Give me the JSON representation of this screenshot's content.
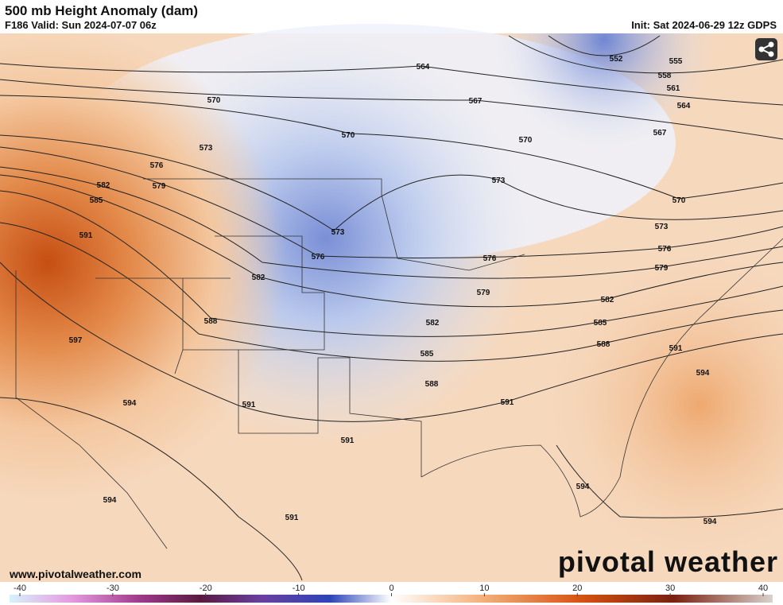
{
  "header": {
    "title": "500 mb Height Anomaly (dam)",
    "valid": "F186 Valid: Sun 2024-07-07 06z",
    "init": "Init: Sat 2024-06-29 12z GDPS"
  },
  "contour_labels": [
    552,
    555,
    558,
    561,
    564,
    564,
    567,
    567,
    570,
    570,
    570,
    570,
    573,
    573,
    573,
    573,
    576,
    576,
    576,
    576,
    579,
    579,
    579,
    582,
    582,
    582,
    582,
    585,
    585,
    585,
    588,
    588,
    588,
    591,
    591,
    591,
    591,
    591,
    591,
    594,
    594,
    594,
    594,
    594,
    597
  ],
  "colorbar": {
    "ticks": [
      -40,
      -30,
      -20,
      -10,
      0,
      10,
      20,
      30,
      40
    ]
  },
  "footer": {
    "website": "www.pivotalweather.com",
    "logo": "pivotal weather"
  }
}
